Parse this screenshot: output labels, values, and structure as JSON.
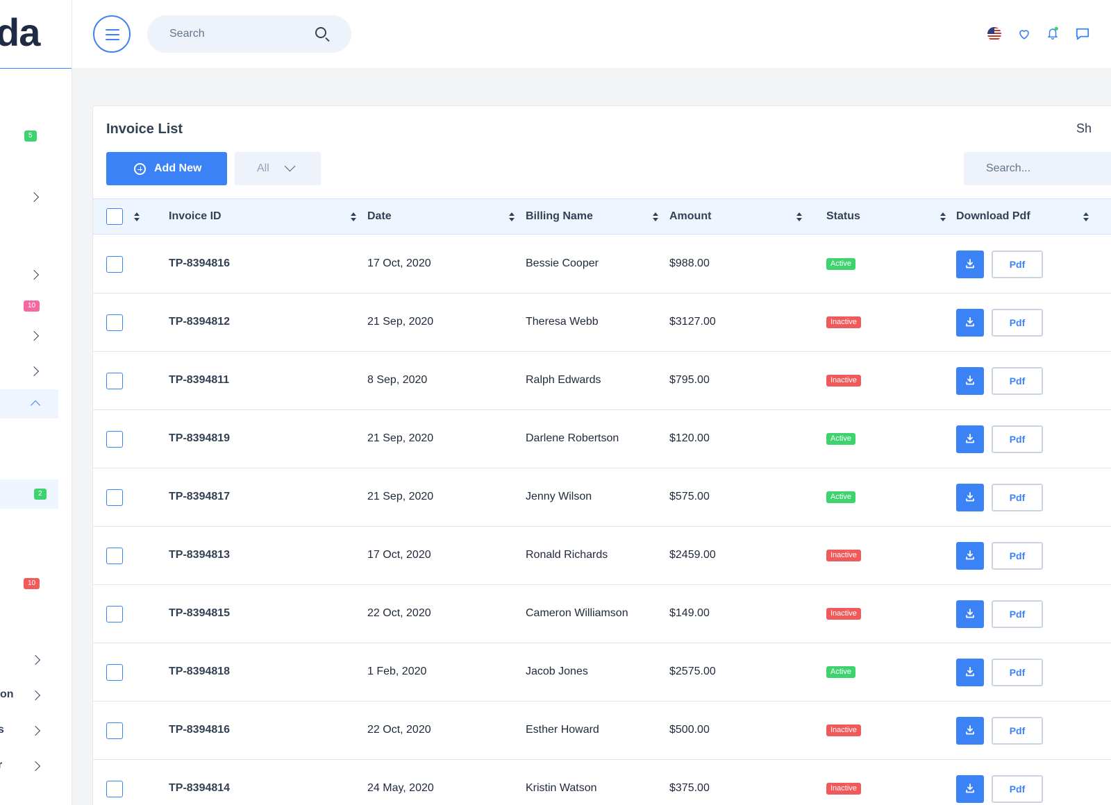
{
  "brand": {
    "logo_text": "da"
  },
  "sidebar": {
    "badges": [
      "5",
      "10",
      "2",
      "10"
    ],
    "partial_labels": [
      "on",
      "s",
      "r"
    ]
  },
  "topbar": {
    "search_placeholder": "Search",
    "language": "en-us"
  },
  "invoice": {
    "title": "Invoice List",
    "right_partial_label": "Sh",
    "add_label": "Add New",
    "filter_value": "All",
    "search_placeholder": "Search...",
    "columns": [
      "Invoice ID",
      "Date",
      "Billing Name",
      "Amount",
      "Status",
      "Download Pdf"
    ],
    "pdf_label": "Pdf",
    "rows": [
      {
        "id": "TP-8394816",
        "date": "17 Oct, 2020",
        "name": "Bessie Cooper",
        "amount": "$988.00",
        "status": "Active"
      },
      {
        "id": "TP-8394812",
        "date": "21 Sep, 2020",
        "name": "Theresa Webb",
        "amount": "$3127.00",
        "status": "Inactive"
      },
      {
        "id": "TP-8394811",
        "date": "8 Sep, 2020",
        "name": "Ralph Edwards",
        "amount": "$795.00",
        "status": "Inactive"
      },
      {
        "id": "TP-8394819",
        "date": "21 Sep, 2020",
        "name": "Darlene Robertson",
        "amount": "$120.00",
        "status": "Active"
      },
      {
        "id": "TP-8394817",
        "date": "21 Sep, 2020",
        "name": "Jenny Wilson",
        "amount": "$575.00",
        "status": "Active"
      },
      {
        "id": "TP-8394813",
        "date": "17 Oct, 2020",
        "name": "Ronald Richards",
        "amount": "$2459.00",
        "status": "Inactive"
      },
      {
        "id": "TP-8394815",
        "date": "22 Oct, 2020",
        "name": "Cameron Williamson",
        "amount": "$149.00",
        "status": "Inactive"
      },
      {
        "id": "TP-8394818",
        "date": "1 Feb, 2020",
        "name": "Jacob Jones",
        "amount": "$2575.00",
        "status": "Active"
      },
      {
        "id": "TP-8394816",
        "date": "22 Oct, 2020",
        "name": "Esther Howard",
        "amount": "$500.00",
        "status": "Inactive"
      },
      {
        "id": "TP-8394814",
        "date": "24 May, 2020",
        "name": "Kristin Watson",
        "amount": "$375.00",
        "status": "Inactive"
      }
    ]
  },
  "colors": {
    "accent": "#3b82f6",
    "active_badge": "#3ed36f",
    "inactive_badge": "#f05a5a",
    "pink_badge": "#f46aa0"
  }
}
